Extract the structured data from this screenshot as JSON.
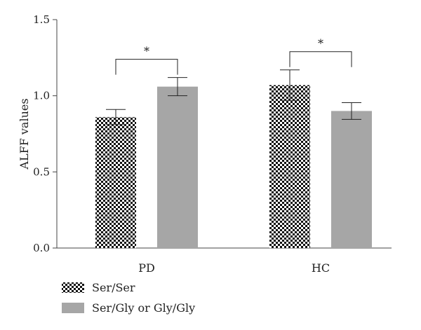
{
  "chart_data": {
    "type": "bar",
    "categories": [
      "PD",
      "HC"
    ],
    "series": [
      {
        "name": "Ser/Ser",
        "values": [
          0.86,
          1.07
        ],
        "errors": [
          0.05,
          0.1
        ],
        "pattern": "checkerboard"
      },
      {
        "name": "Ser/Gly or Gly/Gly",
        "values": [
          1.06,
          0.9
        ],
        "errors": [
          0.06,
          0.055
        ],
        "color": "#a6a6a6"
      }
    ],
    "ylabel": "ALFF values",
    "xlabel": "",
    "ylim": [
      0,
      1.5
    ],
    "yticks": [
      "0.0",
      "0.5",
      "1.0",
      "1.5"
    ],
    "significance": [
      {
        "category": "PD",
        "label": "*"
      },
      {
        "category": "HC",
        "label": "*"
      }
    ],
    "legend_position": "bottom-left",
    "grid": false
  }
}
